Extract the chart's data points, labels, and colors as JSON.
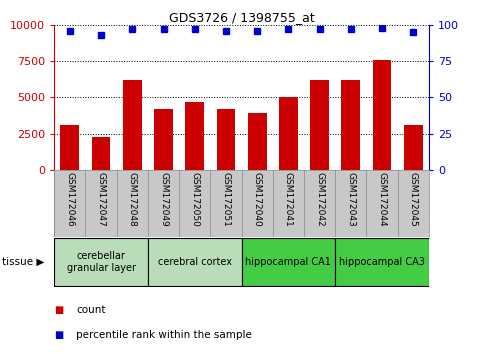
{
  "title": "GDS3726 / 1398755_at",
  "categories": [
    "GSM172046",
    "GSM172047",
    "GSM172048",
    "GSM172049",
    "GSM172050",
    "GSM172051",
    "GSM172040",
    "GSM172041",
    "GSM172042",
    "GSM172043",
    "GSM172044",
    "GSM172045"
  ],
  "counts": [
    3100,
    2300,
    6200,
    4200,
    4700,
    4200,
    3900,
    5000,
    6200,
    6200,
    7600,
    3100
  ],
  "percentiles": [
    96,
    93,
    97,
    97,
    97,
    96,
    96,
    97,
    97,
    97,
    98,
    95
  ],
  "tissue_groups": [
    {
      "label": "cerebellar\ngranular layer",
      "start": 0,
      "end": 3,
      "color": "#b8ddb8"
    },
    {
      "label": "cerebral cortex",
      "start": 3,
      "end": 6,
      "color": "#b8ddb8"
    },
    {
      "label": "hippocampal CA1",
      "start": 6,
      "end": 9,
      "color": "#44cc44"
    },
    {
      "label": "hippocampal CA3",
      "start": 9,
      "end": 12,
      "color": "#44cc44"
    }
  ],
  "bar_color": "#cc0000",
  "dot_color": "#0000cc",
  "left_axis_color": "#cc0000",
  "right_axis_color": "#0000cc",
  "ylim_left": [
    0,
    10000
  ],
  "ylim_right": [
    0,
    100
  ],
  "yticks_left": [
    0,
    2500,
    5000,
    7500,
    10000
  ],
  "yticks_right": [
    0,
    25,
    50,
    75,
    100
  ],
  "tissue_label": "tissue",
  "legend_count": "count",
  "legend_percentile": "percentile rank within the sample",
  "background_color": "#ffffff",
  "grid_color": "#000000",
  "xlabel_bg": "#c8c8c8"
}
